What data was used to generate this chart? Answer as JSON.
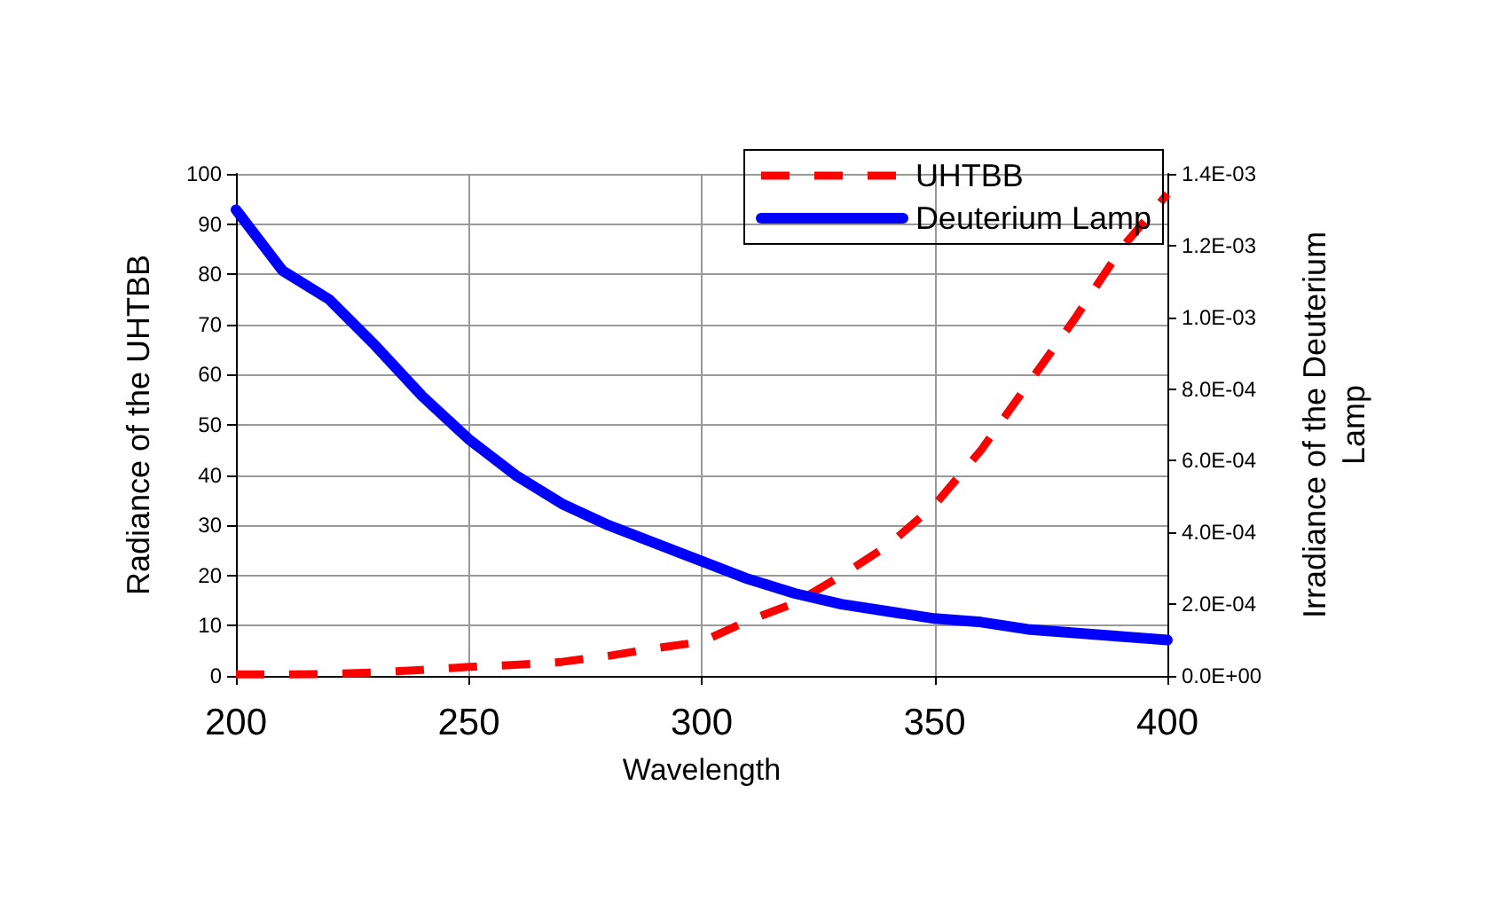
{
  "chart_data": {
    "type": "line",
    "xlabel": "Wavelength",
    "ylabel": "Radiance of the UHTBB",
    "y2label": "Irradiance of the Deuterium\nLamp",
    "x": [
      200,
      210,
      220,
      230,
      240,
      250,
      260,
      270,
      280,
      290,
      300,
      310,
      320,
      330,
      340,
      350,
      360,
      370,
      380,
      390,
      400
    ],
    "series": [
      {
        "name": "UHTBB",
        "color": "#ff0000",
        "line_style": "dashed",
        "values": [
          0.3,
          0.3,
          0.4,
          0.7,
          1.2,
          1.8,
          2.2,
          2.8,
          4,
          5.5,
          6.8,
          11,
          14.5,
          20,
          26,
          34,
          45,
          58,
          71,
          85,
          96
        ]
      },
      {
        "name": "Deuterium Lamp",
        "color": "#0000ff",
        "line_style": "solid",
        "axis": "y2",
        "values": [
          0.0013,
          0.00113,
          0.00105,
          0.00092,
          0.00078,
          0.00066,
          0.00056,
          0.00048,
          0.00042,
          0.00037,
          0.00032,
          0.00027,
          0.00023,
          0.0002,
          0.00018,
          0.00016,
          0.00015,
          0.00013,
          0.00012,
          0.00011,
          0.0001
        ]
      }
    ],
    "xlim": [
      200,
      400
    ],
    "xticks": [
      200,
      250,
      300,
      350,
      400
    ],
    "ylim": [
      0,
      100
    ],
    "yticks": [
      0,
      10,
      20,
      30,
      40,
      50,
      60,
      70,
      80,
      90,
      100
    ],
    "y2lim": [
      0,
      0.0014
    ],
    "y2ticks": [
      {
        "value": 0,
        "label": "0.0E+00"
      },
      {
        "value": 0.0002,
        "label": "2.0E-04"
      },
      {
        "value": 0.0004,
        "label": "4.0E-04"
      },
      {
        "value": 0.0006,
        "label": "6.0E-04"
      },
      {
        "value": 0.0008,
        "label": "8.0E-04"
      },
      {
        "value": 0.001,
        "label": "1.0E-03"
      },
      {
        "value": 0.0012,
        "label": "1.2E-03"
      },
      {
        "value": 0.0014,
        "label": "1.4E-03"
      }
    ],
    "grid": true,
    "legend": "top right",
    "marker": "none"
  }
}
